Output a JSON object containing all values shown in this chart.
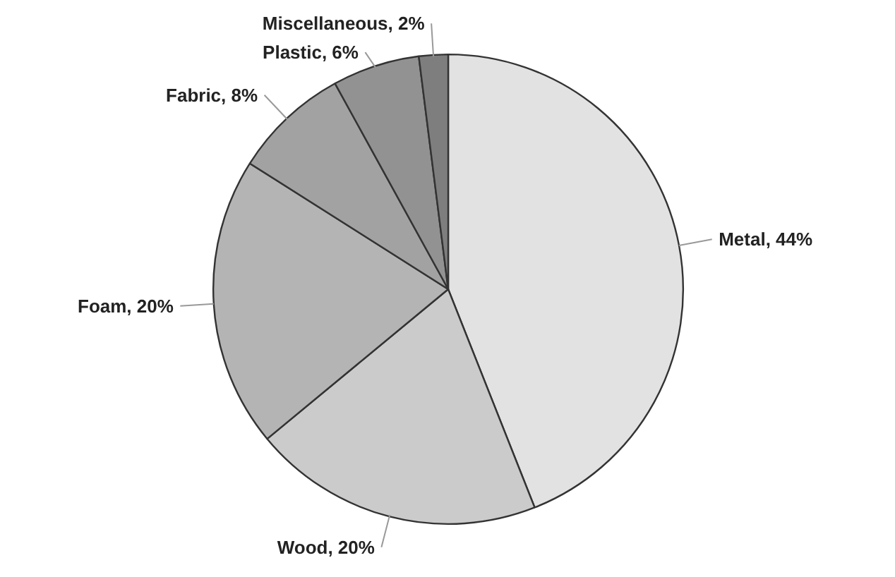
{
  "chart_data": {
    "type": "pie",
    "categories": [
      "Metal",
      "Wood",
      "Foam",
      "Fabric",
      "Plastic",
      "Miscellaneous"
    ],
    "values": [
      44,
      20,
      20,
      8,
      6,
      2
    ],
    "value_labels": [
      "44%",
      "20%",
      "20%",
      "8%",
      "6%",
      "2%"
    ],
    "colors": [
      "#e2e2e2",
      "#cbcbcb",
      "#b4b4b4",
      "#a2a2a2",
      "#929292",
      "#7e7e7e"
    ],
    "legend": false
  }
}
